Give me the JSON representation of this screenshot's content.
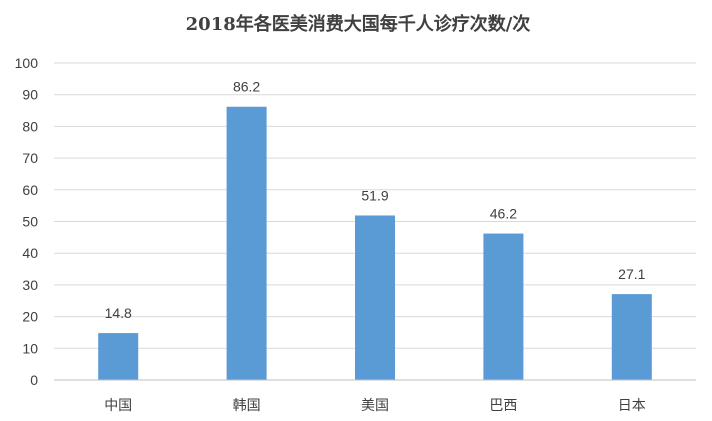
{
  "chart_data": {
    "type": "bar",
    "title": "2018年各医美消费大国每千人诊疗次数/次",
    "categories": [
      "中国",
      "韩国",
      "美国",
      "巴西",
      "日本"
    ],
    "values": [
      14.8,
      86.2,
      51.9,
      46.2,
      27.1
    ],
    "value_labels": [
      "14.8",
      "86.2",
      "51.9",
      "46.2",
      "27.1"
    ],
    "ylim": [
      0,
      100
    ],
    "yticks": [
      0,
      10,
      20,
      30,
      40,
      50,
      60,
      70,
      80,
      90,
      100
    ],
    "grid": true,
    "legend": "none",
    "bar_color": "#5b9bd5",
    "grid_color": "#d9d9d9"
  }
}
